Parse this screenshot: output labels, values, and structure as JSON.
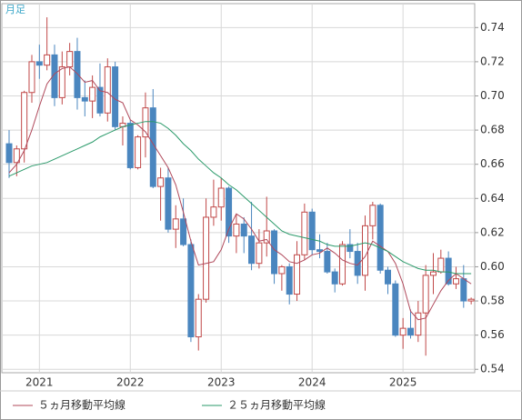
{
  "chart_data": {
    "type": "candlestick",
    "period_label": "月足",
    "categories": [
      null,
      null,
      null,
      null,
      "2021",
      null,
      null,
      null,
      null,
      null,
      null,
      null,
      null,
      null,
      null,
      null,
      "2022",
      null,
      null,
      null,
      null,
      null,
      null,
      null,
      null,
      null,
      null,
      null,
      "2023",
      null,
      null,
      null,
      null,
      null,
      null,
      null,
      null,
      null,
      null,
      null,
      "2024",
      null,
      null,
      null,
      null,
      null,
      null,
      null,
      null,
      null,
      null,
      null,
      "2025",
      null,
      null,
      null,
      null,
      null,
      null,
      null,
      null,
      null
    ],
    "open": [
      0.672,
      0.661,
      0.669,
      0.702,
      0.72,
      0.718,
      0.724,
      0.699,
      0.717,
      0.726,
      0.699,
      0.697,
      0.705,
      0.69,
      0.717,
      0.682,
      0.684,
      0.658,
      0.676,
      0.693,
      0.647,
      0.652,
      0.622,
      0.628,
      0.613,
      0.559,
      0.581,
      0.629,
      0.635,
      0.646,
      0.618,
      0.625,
      0.618,
      0.602,
      0.614,
      0.621,
      0.596,
      0.6,
      0.584,
      0.607,
      0.632,
      0.61,
      0.609,
      0.597,
      0.59,
      0.613,
      0.609,
      0.595,
      0.624,
      0.636,
      0.598,
      0.59,
      0.56,
      0.564,
      0.56,
      0.573,
      0.595,
      0.597,
      0.605,
      0.59,
      0.593,
      0.58
    ],
    "high": [
      0.68,
      0.671,
      0.703,
      0.724,
      0.73,
      0.746,
      0.73,
      0.726,
      0.731,
      0.734,
      0.709,
      0.712,
      0.719,
      0.722,
      0.72,
      0.688,
      0.686,
      0.677,
      0.702,
      0.704,
      0.658,
      0.658,
      0.636,
      0.64,
      0.616,
      0.584,
      0.64,
      0.651,
      0.652,
      0.647,
      0.631,
      0.629,
      0.638,
      0.622,
      0.641,
      0.622,
      0.601,
      0.602,
      0.615,
      0.637,
      0.634,
      0.619,
      0.614,
      0.599,
      0.615,
      0.622,
      0.614,
      0.63,
      0.638,
      0.637,
      0.6,
      0.592,
      0.57,
      0.575,
      0.58,
      0.601,
      0.608,
      0.61,
      0.609,
      0.6,
      0.601,
      0.582
    ],
    "low": [
      0.652,
      0.653,
      0.661,
      0.696,
      0.71,
      0.715,
      0.694,
      0.695,
      0.712,
      0.692,
      0.688,
      0.687,
      0.688,
      0.685,
      0.68,
      0.671,
      0.657,
      0.657,
      0.664,
      0.646,
      0.627,
      0.62,
      0.611,
      0.612,
      0.556,
      0.551,
      0.579,
      0.624,
      0.627,
      0.614,
      0.608,
      0.608,
      0.598,
      0.599,
      0.606,
      0.59,
      0.586,
      0.578,
      0.58,
      0.604,
      0.607,
      0.605,
      0.596,
      0.585,
      0.589,
      0.605,
      0.59,
      0.586,
      0.616,
      0.596,
      0.584,
      0.559,
      0.552,
      0.558,
      0.556,
      0.548,
      0.584,
      0.596,
      0.589,
      0.587,
      0.576,
      0.578
    ],
    "close": [
      0.661,
      0.669,
      0.702,
      0.72,
      0.718,
      0.724,
      0.699,
      0.717,
      0.726,
      0.699,
      0.697,
      0.705,
      0.69,
      0.717,
      0.682,
      0.684,
      0.658,
      0.676,
      0.693,
      0.647,
      0.652,
      0.622,
      0.628,
      0.613,
      0.559,
      0.581,
      0.629,
      0.635,
      0.646,
      0.618,
      0.625,
      0.618,
      0.602,
      0.614,
      0.621,
      0.596,
      0.6,
      0.584,
      0.607,
      0.632,
      0.61,
      0.609,
      0.597,
      0.59,
      0.613,
      0.609,
      0.595,
      0.624,
      0.636,
      0.598,
      0.59,
      0.56,
      0.564,
      0.56,
      0.573,
      0.595,
      0.597,
      0.605,
      0.59,
      0.593,
      0.58,
      0.581
    ],
    "up_color": "#c04848",
    "down_color": "#4a86bf",
    "series": [
      {
        "name": "５ヵ月移動平均線",
        "color": "#b0485a",
        "values": [
          0.655,
          0.66,
          0.668,
          0.68,
          0.694,
          0.707,
          0.713,
          0.716,
          0.717,
          0.713,
          0.708,
          0.709,
          0.703,
          0.702,
          0.698,
          0.696,
          0.686,
          0.683,
          0.679,
          0.672,
          0.665,
          0.658,
          0.648,
          0.632,
          0.615,
          0.601,
          0.602,
          0.603,
          0.61,
          0.622,
          0.631,
          0.628,
          0.622,
          0.615,
          0.616,
          0.61,
          0.607,
          0.603,
          0.602,
          0.604,
          0.607,
          0.608,
          0.611,
          0.608,
          0.604,
          0.602,
          0.601,
          0.606,
          0.615,
          0.612,
          0.609,
          0.602,
          0.59,
          0.574,
          0.569,
          0.57,
          0.578,
          0.586,
          0.592,
          0.596,
          0.593,
          0.59
        ]
      },
      {
        "name": "２５ヵ月移動平均線",
        "color": "#2a9a6a",
        "values": [
          0.653,
          0.655,
          0.657,
          0.659,
          0.66,
          0.661,
          0.663,
          0.665,
          0.667,
          0.669,
          0.671,
          0.673,
          0.676,
          0.678,
          0.68,
          0.682,
          0.683,
          0.684,
          0.685,
          0.685,
          0.684,
          0.681,
          0.677,
          0.672,
          0.668,
          0.663,
          0.659,
          0.655,
          0.652,
          0.648,
          0.645,
          0.641,
          0.637,
          0.633,
          0.629,
          0.625,
          0.621,
          0.619,
          0.618,
          0.617,
          0.616,
          0.615,
          0.613,
          0.612,
          0.612,
          0.612,
          0.613,
          0.614,
          0.613,
          0.611,
          0.609,
          0.606,
          0.603,
          0.601,
          0.599,
          0.598,
          0.598,
          0.597,
          0.597,
          0.596,
          0.596,
          0.596
        ]
      }
    ],
    "ylim": [
      0.538,
      0.754
    ],
    "yticks": [
      0.54,
      0.56,
      0.58,
      {
        "value": 0.6,
        "label": "0.60"
      },
      0.62,
      0.64,
      0.66,
      0.68,
      {
        "value": 0.7,
        "label": "0.70"
      },
      0.72,
      0.74
    ],
    "grid": true
  }
}
